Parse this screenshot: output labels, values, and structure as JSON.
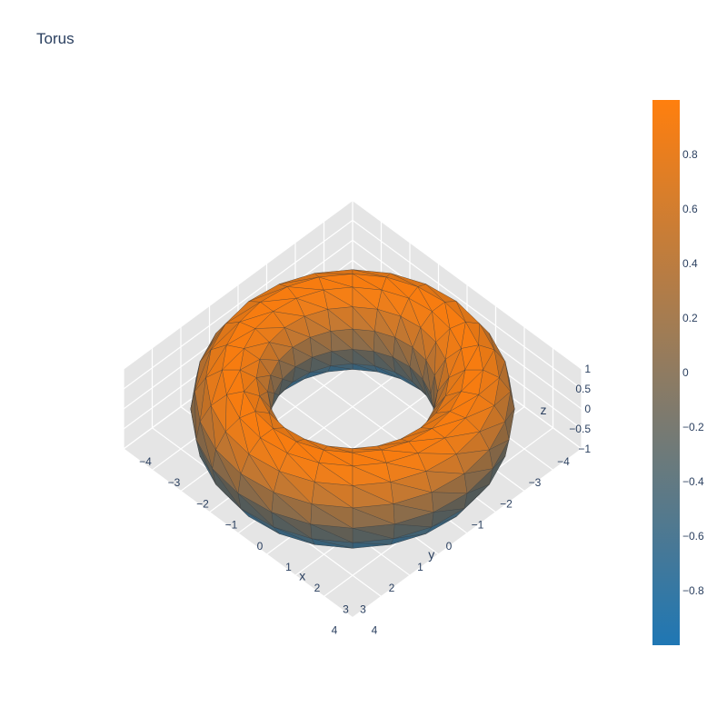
{
  "title": "Torus",
  "chart_data": {
    "type": "mesh3d",
    "title": "Torus",
    "surface": "torus",
    "major_radius": 3,
    "minor_radius": 1,
    "color_variable": "z",
    "colorscale": [
      "#1f77b4",
      "#ff7f0e"
    ],
    "cmin": -1,
    "cmax": 1,
    "axes": {
      "x": {
        "label": "x",
        "range": [
          -4,
          4
        ],
        "ticks": [
          -4,
          -3,
          -2,
          -1,
          0,
          1,
          2,
          3,
          4
        ]
      },
      "y": {
        "label": "y",
        "range": [
          -4,
          4
        ],
        "ticks": [
          -4,
          -3,
          -2,
          -1,
          0,
          1,
          2,
          3,
          4
        ]
      },
      "z": {
        "label": "z",
        "range": [
          -1,
          1
        ],
        "ticks": [
          -1,
          -0.5,
          0,
          0.5,
          1
        ]
      }
    },
    "colorbar": {
      "ticks": [
        -0.8,
        -0.6,
        -0.4,
        -0.2,
        0,
        0.2,
        0.4,
        0.6,
        0.8
      ]
    },
    "grid": true
  }
}
